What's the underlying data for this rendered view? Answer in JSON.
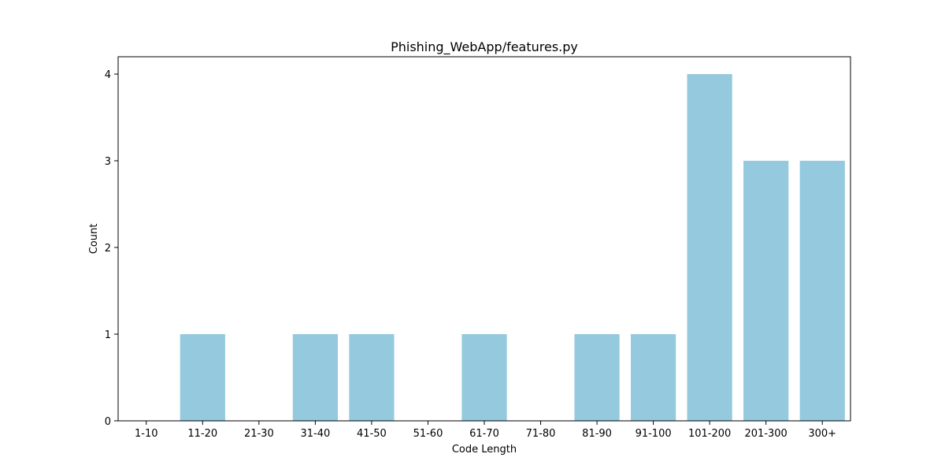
{
  "chart_data": {
    "type": "bar",
    "title": "Phishing_WebApp/features.py",
    "xlabel": "Code Length",
    "ylabel": "Count",
    "categories": [
      "1-10",
      "11-20",
      "21-30",
      "31-40",
      "41-50",
      "51-60",
      "61-70",
      "71-80",
      "81-90",
      "91-100",
      "101-200",
      "201-300",
      "300+"
    ],
    "values": [
      0,
      1,
      0,
      1,
      1,
      0,
      1,
      0,
      1,
      1,
      4,
      3,
      3
    ],
    "ylim": [
      0,
      4.2
    ],
    "yticks": [
      0,
      1,
      2,
      3,
      4
    ],
    "grid": false,
    "bar_color": "#95c9de",
    "axis_color": "#000000"
  }
}
